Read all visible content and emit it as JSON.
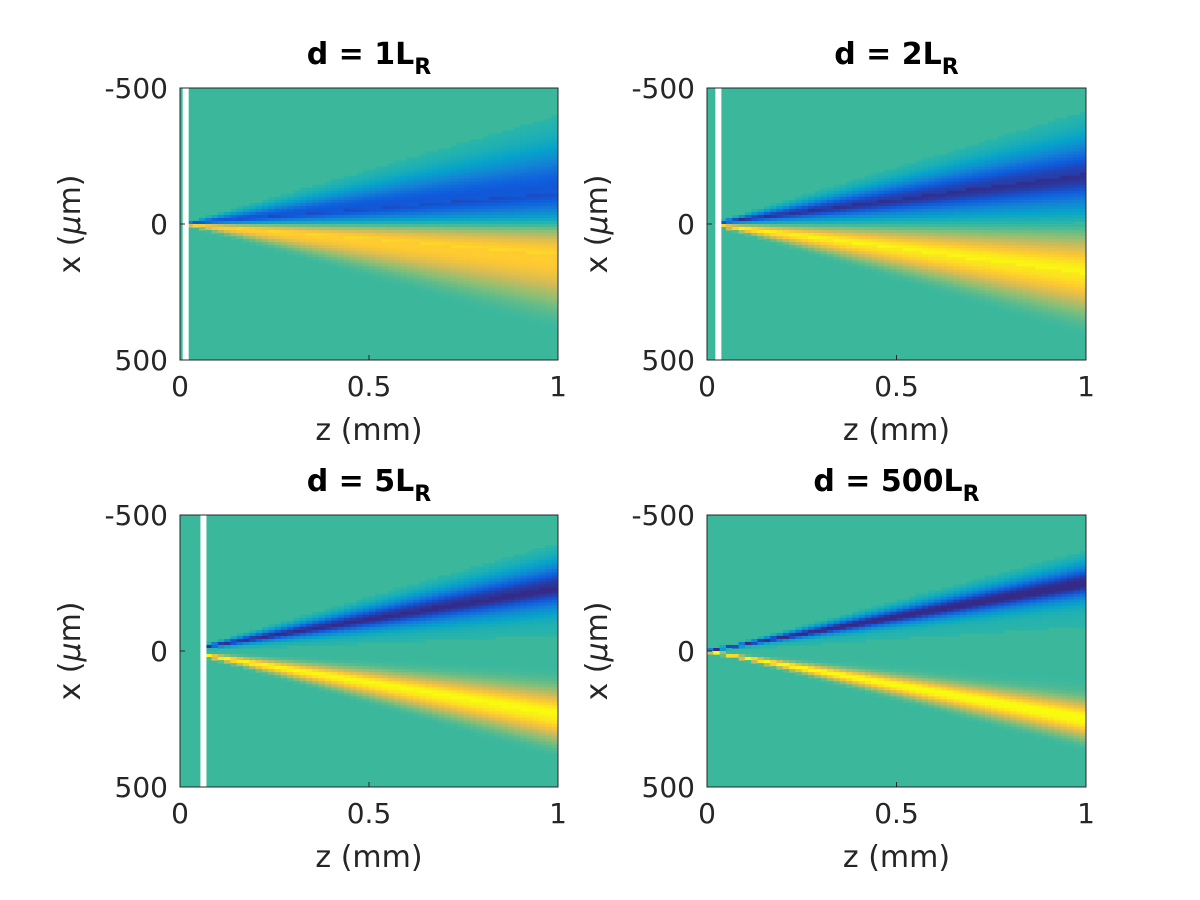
{
  "chart_data": [
    {
      "type": "heatmap",
      "title": "d = 1L",
      "title_subscript": "R",
      "xlabel": "z (mm)",
      "ylabel": "x (",
      "ylabel_symbol": "μ",
      "ylabel_end": "m)",
      "xlim": [
        0,
        1
      ],
      "ylim": [
        -500,
        500
      ],
      "y_reversed": true,
      "xticks": [
        0,
        0.5,
        1
      ],
      "xtick_labels": [
        "0",
        "0.5",
        "1"
      ],
      "yticks": [
        -500,
        0,
        500
      ],
      "ytick_labels": [
        "-500",
        "0",
        "500"
      ],
      "white_line_z": 0.015,
      "beam_center_slope_um_per_mm": 115,
      "beam_halfwidth_um_at_end": 170,
      "beam_peak_intensity": 0.85,
      "beam_tail_decay": 1.2
    },
    {
      "type": "heatmap",
      "title": "d = 2L",
      "title_subscript": "R",
      "xlabel": "z (mm)",
      "ylabel": "x (",
      "ylabel_symbol": "μ",
      "ylabel_end": "m)",
      "xlim": [
        0,
        1
      ],
      "ylim": [
        -500,
        500
      ],
      "y_reversed": true,
      "xticks": [
        0,
        0.5,
        1
      ],
      "xtick_labels": [
        "0",
        "0.5",
        "1"
      ],
      "yticks": [
        -500,
        0,
        500
      ],
      "ytick_labels": [
        "-500",
        "0",
        "500"
      ],
      "white_line_z": 0.03,
      "beam_center_slope_um_per_mm": 185,
      "beam_halfwidth_um_at_end": 125,
      "beam_peak_intensity": 0.9,
      "beam_tail_decay": 1.0
    },
    {
      "type": "heatmap",
      "title": "d = 5L",
      "title_subscript": "R",
      "xlabel": "z (mm)",
      "ylabel": "x (",
      "ylabel_symbol": "μ",
      "ylabel_end": "m)",
      "xlim": [
        0,
        1
      ],
      "ylim": [
        -500,
        500
      ],
      "y_reversed": true,
      "xticks": [
        0,
        0.5,
        1
      ],
      "xtick_labels": [
        "0",
        "0.5",
        "1"
      ],
      "yticks": [
        -500,
        0,
        500
      ],
      "ytick_labels": [
        "-500",
        "0",
        "500"
      ],
      "white_line_z": 0.062,
      "beam_center_slope_um_per_mm": 240,
      "beam_halfwidth_um_at_end": 80,
      "beam_peak_intensity": 0.95,
      "beam_tail_decay": 0.9
    },
    {
      "type": "heatmap",
      "title": "d = 500L",
      "title_subscript": "R",
      "xlabel": "z (mm)",
      "ylabel": "x (",
      "ylabel_symbol": "μ",
      "ylabel_end": "m)",
      "xlim": [
        0,
        1
      ],
      "ylim": [
        -500,
        500
      ],
      "y_reversed": true,
      "xticks": [
        0,
        0.5,
        1
      ],
      "xtick_labels": [
        "0",
        "0.5",
        "1"
      ],
      "yticks": [
        -500,
        0,
        500
      ],
      "ytick_labels": [
        "-500",
        "0",
        "500"
      ],
      "white_line_z": null,
      "beam_center_slope_um_per_mm": 255,
      "beam_halfwidth_um_at_end": 55,
      "beam_peak_intensity": 1.0,
      "beam_tail_decay": 0.8
    }
  ],
  "colormap": {
    "name": "parula",
    "stops": [
      "#352a87",
      "#0f5cdd",
      "#1481d6",
      "#06a4ca",
      "#2eb7a4",
      "#87bf77",
      "#d1bb59",
      "#fec832",
      "#f9fb0e"
    ],
    "background": "#3bb89b",
    "gap_color": "#ffffff"
  }
}
